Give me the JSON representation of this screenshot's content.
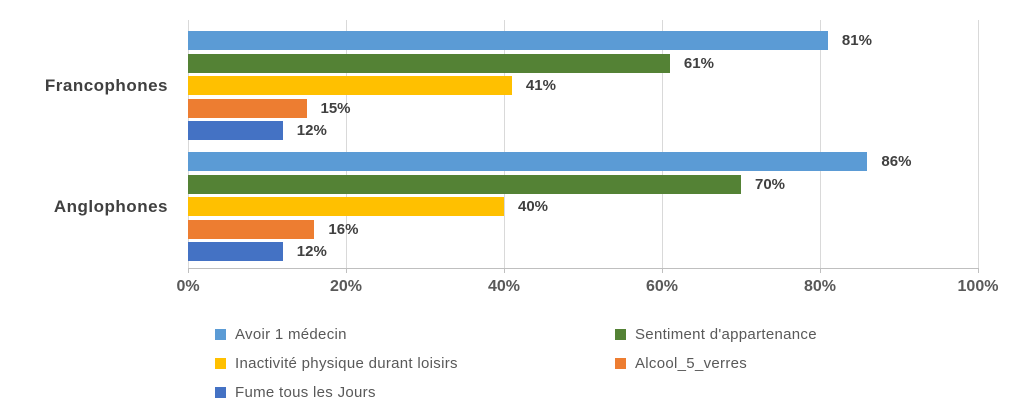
{
  "chart_data": {
    "type": "bar",
    "orientation": "horizontal",
    "title": "",
    "xlabel": "",
    "ylabel": "",
    "grid": true,
    "legend_position": "bottom",
    "value_suffix": "%",
    "categories": [
      "Francophones",
      "Anglophones"
    ],
    "series": [
      {
        "name": "Avoir 1 médecin",
        "color": "#5B9BD5",
        "values": [
          81,
          86
        ]
      },
      {
        "name": "Sentiment d'appartenance",
        "color": "#548235",
        "values": [
          61,
          70
        ]
      },
      {
        "name": "Inactivité physique durant loisirs",
        "color": "#FFC000",
        "values": [
          41,
          40
        ]
      },
      {
        "name": "Alcool_5_verres",
        "color": "#ED7D31",
        "values": [
          15,
          16
        ]
      },
      {
        "name": "Fume tous les Jours",
        "color": "#4472C4",
        "values": [
          12,
          12
        ]
      }
    ],
    "data_labels": {
      "Francophones": [
        "81%",
        "61%",
        "41%",
        "15%",
        "12%"
      ],
      "Anglophones": [
        "86%",
        "70%",
        "40%",
        "16%",
        "12%"
      ]
    },
    "x_axis": {
      "min": 0,
      "max": 100,
      "tick_labels": [
        "0%",
        "20%",
        "40%",
        "60%",
        "80%",
        "100%"
      ],
      "tick_values": [
        0,
        20,
        40,
        60,
        80,
        100
      ]
    },
    "colors": {
      "gridline": "#D9D9D9",
      "axis_line": "#BFBFBF",
      "value_label_text": "#404040",
      "category_label_text": "#404040",
      "tick_label_text": "#595959",
      "legend_text": "#595959",
      "background": "#FFFFFF"
    }
  }
}
